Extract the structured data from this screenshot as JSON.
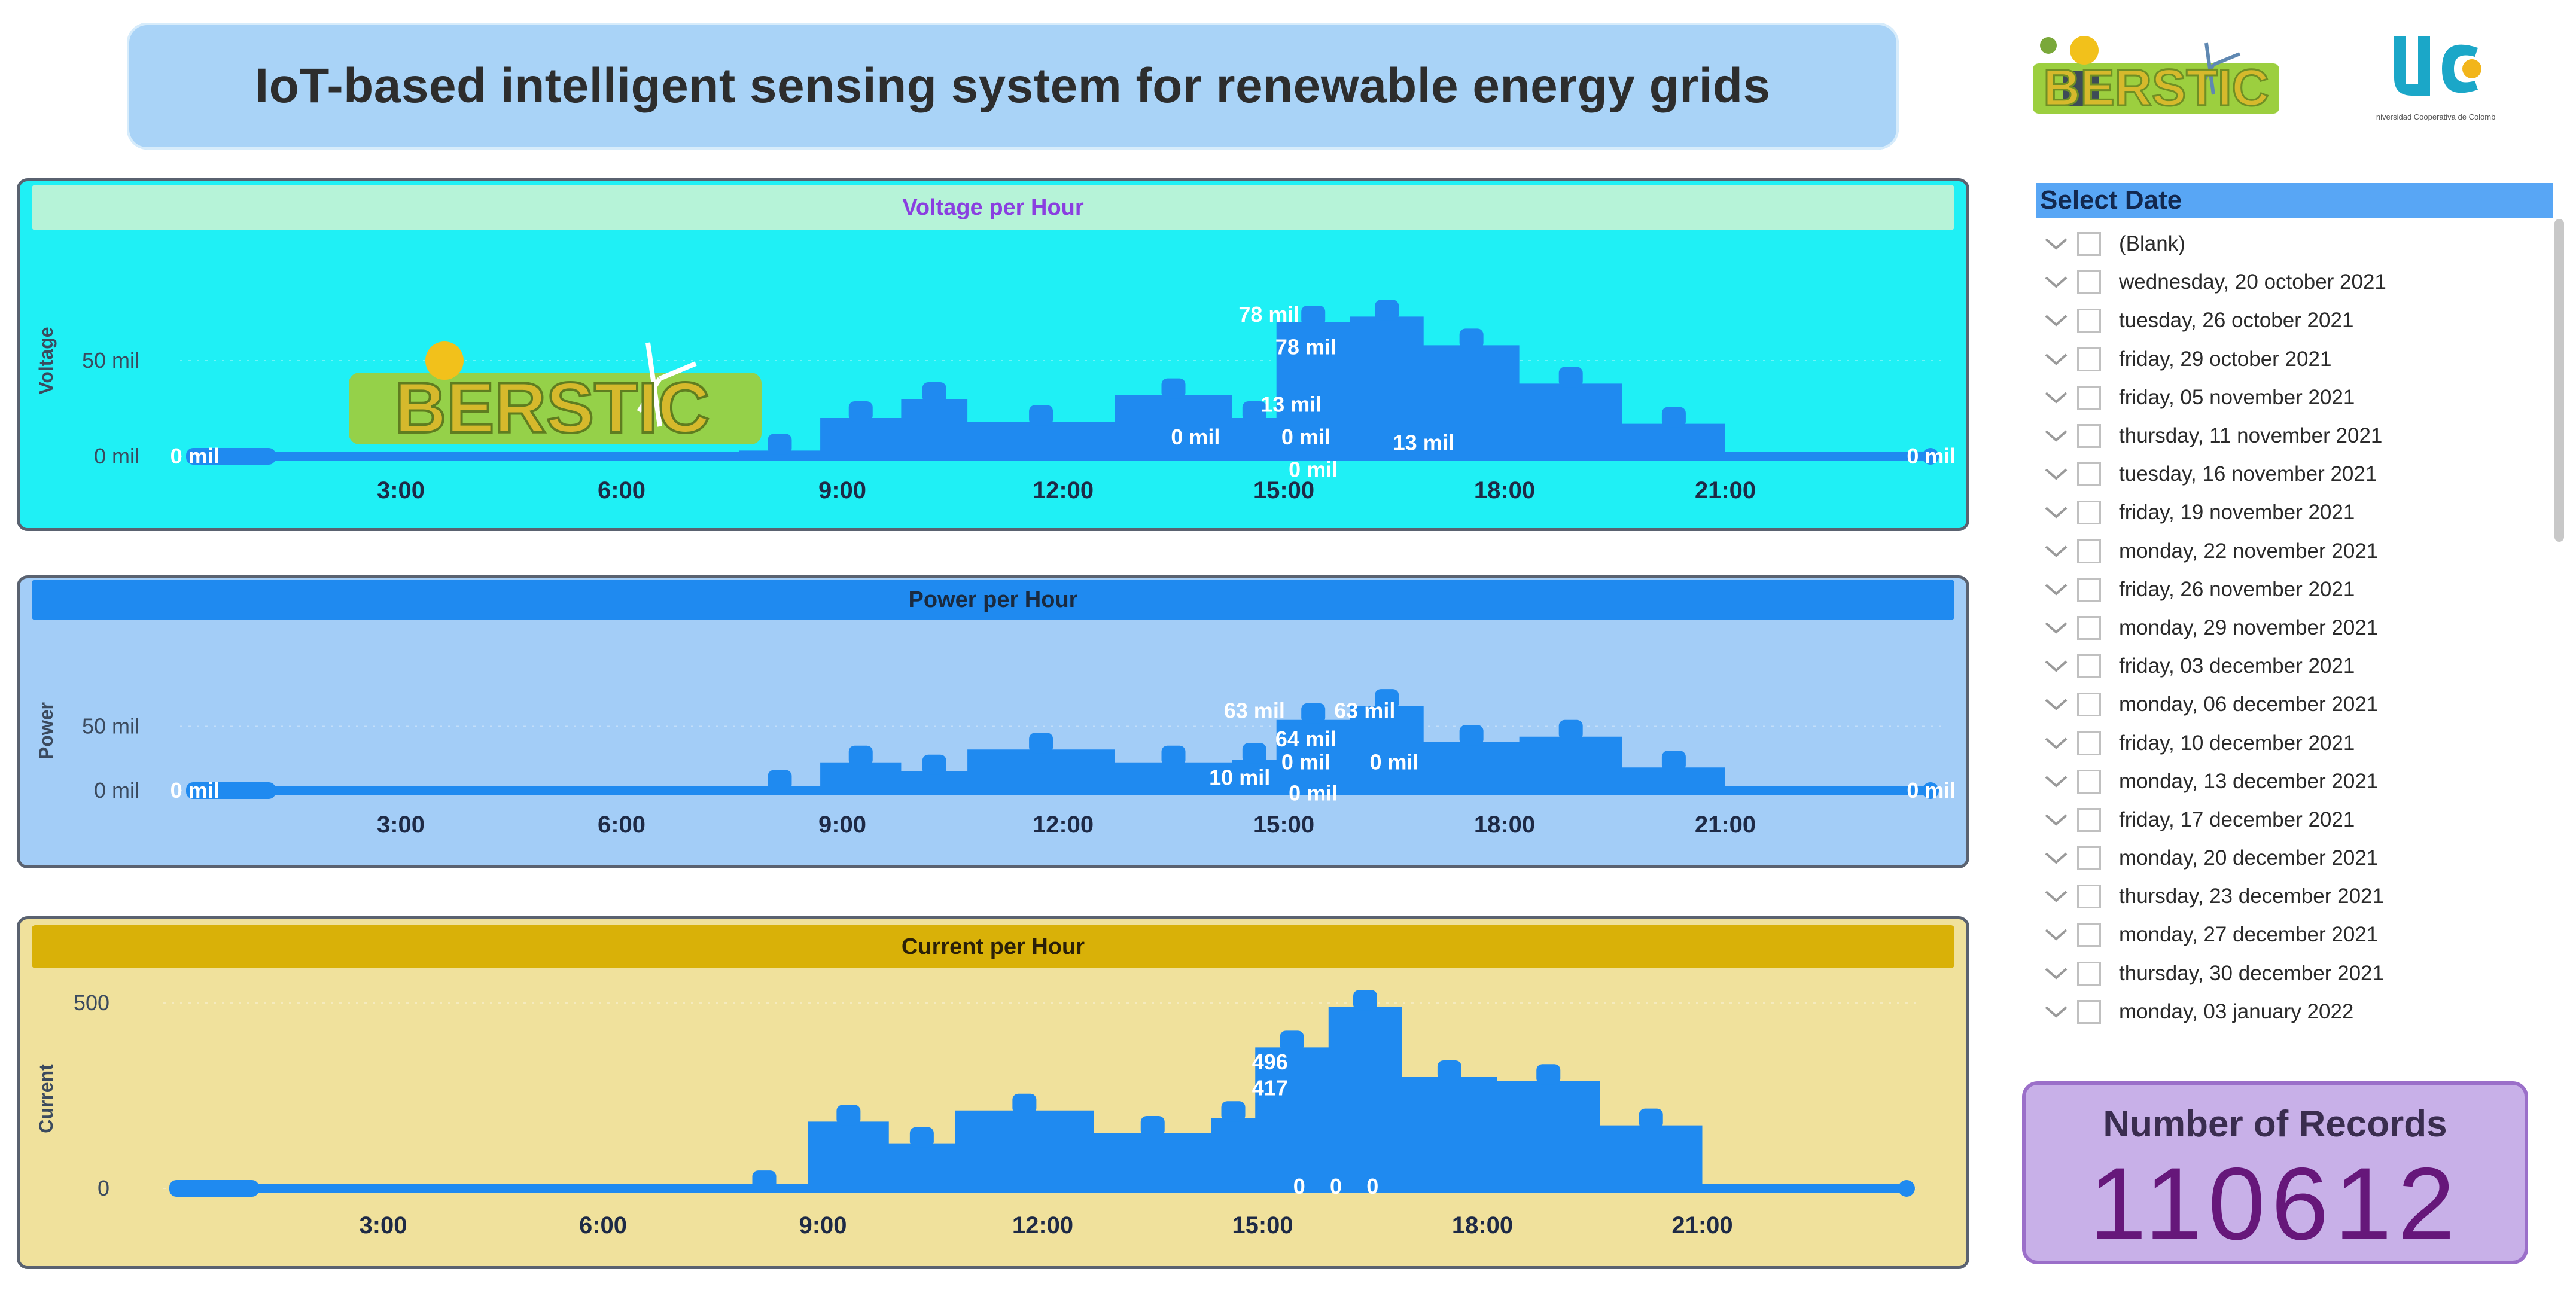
{
  "title": "IoT-based intelligent sensing system for renewable energy grids",
  "logos": {
    "berstic": "BERSTIC",
    "ucc_mark": "UC",
    "ucc_name": "Universidad Cooperativa de Colombia"
  },
  "colors": {
    "area": "#1f8af0",
    "voltage_bg": "#1ff0f5",
    "voltage_header": "#b6f3d8",
    "power_bg": "#a3cdf7",
    "power_header": "#1f8af0",
    "current_bg": "#f0e19c",
    "current_header": "#d9b108"
  },
  "slicer": {
    "title": "Select Date",
    "items": [
      "(Blank)",
      "wednesday, 20 october 2021",
      "tuesday, 26 october 2021",
      "friday, 29 october 2021",
      "friday, 05 november 2021",
      "thursday, 11 november 2021",
      "tuesday, 16 november 2021",
      "friday, 19 november 2021",
      "monday, 22 november 2021",
      "friday, 26 november 2021",
      "monday, 29 november 2021",
      "friday, 03 december 2021",
      "monday, 06 december 2021",
      "friday, 10 december 2021",
      "monday, 13 december 2021",
      "friday, 17 december 2021",
      "monday, 20 december 2021",
      "thursday, 23 december 2021",
      "monday, 27 december 2021",
      "thursday, 30 december 2021",
      "monday, 03 january 2022"
    ]
  },
  "records": {
    "label": "Number of Records",
    "value": "110612"
  },
  "chart_data": [
    {
      "type": "area",
      "title": "Voltage per Hour",
      "ylabel": "Voltage",
      "x_ticks": [
        3,
        6,
        9,
        12,
        15,
        18,
        21
      ],
      "x_tick_labels": [
        "3:00",
        "6:00",
        "9:00",
        "12:00",
        "15:00",
        "18:00",
        "21:00"
      ],
      "xlim": [
        0,
        24
      ],
      "ylim": [
        0,
        100
      ],
      "y_ticks": [
        0,
        50
      ],
      "y_tick_labels": [
        "0 mil",
        "50 mil"
      ],
      "x": [
        0,
        1.2,
        7.6,
        8.7,
        9.8,
        10.7,
        12.7,
        14.3,
        14.9,
        15.9,
        16.9,
        18.2,
        19.6,
        21
      ],
      "values": [
        0,
        0,
        3,
        20,
        30,
        18,
        32,
        20,
        70,
        73,
        58,
        38,
        17,
        3
      ],
      "data_labels": [
        {
          "x": 0.2,
          "y": 0,
          "text": "0 mil"
        },
        {
          "x": 23.8,
          "y": 0,
          "text": "0 mil"
        },
        {
          "x": 14.8,
          "y": 74,
          "text": "78 mil"
        },
        {
          "x": 15.3,
          "y": 57,
          "text": "78 mil"
        },
        {
          "x": 15.1,
          "y": 27,
          "text": "13 mil"
        },
        {
          "x": 16.9,
          "y": 7,
          "text": "13 mil"
        },
        {
          "x": 13.8,
          "y": 10,
          "text": "0 mil"
        },
        {
          "x": 15.3,
          "y": 10,
          "text": "0 mil"
        },
        {
          "x": 15.4,
          "y": -7,
          "text": "0 mil"
        }
      ]
    },
    {
      "type": "area",
      "title": "Power per Hour",
      "ylabel": "Power",
      "x_ticks": [
        3,
        6,
        9,
        12,
        15,
        18,
        21
      ],
      "x_tick_labels": [
        "3:00",
        "6:00",
        "9:00",
        "12:00",
        "15:00",
        "18:00",
        "21:00"
      ],
      "xlim": [
        0,
        24
      ],
      "ylim": [
        0,
        100
      ],
      "y_ticks": [
        0,
        50
      ],
      "y_tick_labels": [
        "0 mil",
        "50 mil"
      ],
      "x": [
        0,
        1.2,
        7.6,
        8.7,
        9.8,
        10.7,
        12.7,
        14.3,
        14.9,
        15.9,
        16.9,
        18.2,
        19.6,
        21
      ],
      "values": [
        0,
        0,
        3,
        22,
        15,
        32,
        22,
        24,
        55,
        66,
        38,
        42,
        18,
        3
      ],
      "data_labels": [
        {
          "x": 0.2,
          "y": 0,
          "text": "0 mil"
        },
        {
          "x": 23.8,
          "y": 0,
          "text": "0 mil"
        },
        {
          "x": 14.6,
          "y": 62,
          "text": "63 mil"
        },
        {
          "x": 16.1,
          "y": 62,
          "text": "63 mil"
        },
        {
          "x": 15.3,
          "y": 40,
          "text": "64 mil"
        },
        {
          "x": 15.3,
          "y": 22,
          "text": "0 mil"
        },
        {
          "x": 16.5,
          "y": 22,
          "text": "0 mil"
        },
        {
          "x": 14.4,
          "y": 10,
          "text": "10 mil"
        },
        {
          "x": 15.4,
          "y": -2,
          "text": "0 mil"
        }
      ]
    },
    {
      "type": "area",
      "title": "Current per Hour",
      "ylabel": "Current",
      "x_ticks": [
        3,
        6,
        9,
        12,
        15,
        18,
        21
      ],
      "x_tick_labels": [
        "3:00",
        "6:00",
        "9:00",
        "12:00",
        "15:00",
        "18:00",
        "21:00"
      ],
      "xlim": [
        0,
        24
      ],
      "ylim": [
        0,
        500
      ],
      "y_ticks": [
        0,
        500
      ],
      "y_tick_labels": [
        "0",
        "500"
      ],
      "x": [
        0,
        1.1,
        7.6,
        8.8,
        9.9,
        10.8,
        12.7,
        14.3,
        14.9,
        15.9,
        16.9,
        18.2,
        19.6,
        21
      ],
      "values": [
        0,
        0,
        3,
        180,
        120,
        210,
        150,
        190,
        380,
        490,
        300,
        290,
        170,
        3
      ],
      "data_labels": [
        {
          "x": 15.1,
          "y": 340,
          "text": "496"
        },
        {
          "x": 15.1,
          "y": 270,
          "text": "417"
        },
        {
          "x": 15.5,
          "y": 5,
          "text": "0"
        },
        {
          "x": 16.0,
          "y": 5,
          "text": "0"
        },
        {
          "x": 16.5,
          "y": 5,
          "text": "0"
        }
      ]
    }
  ]
}
